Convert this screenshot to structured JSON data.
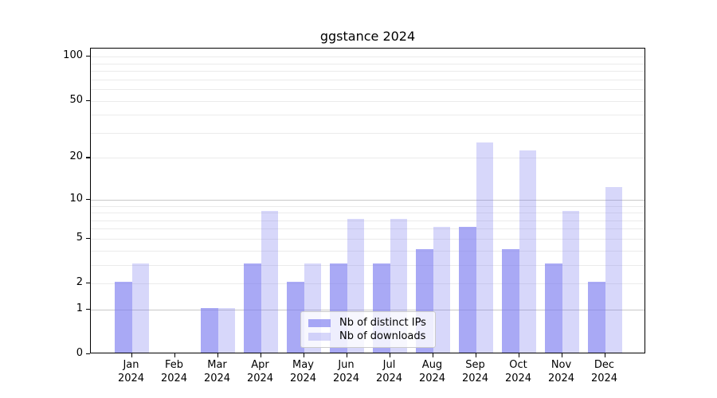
{
  "chart_data": {
    "type": "bar",
    "title": "ggstance 2024",
    "categories": [
      "Jan 2024",
      "Feb 2024",
      "Mar 2024",
      "Apr 2024",
      "May 2024",
      "Jun 2024",
      "Jul 2024",
      "Aug 2024",
      "Sep 2024",
      "Oct 2024",
      "Nov 2024",
      "Dec 2024"
    ],
    "series": [
      {
        "name": "Nb of distinct IPs",
        "color": "#a9aaf9",
        "values": [
          2,
          0,
          1,
          3,
          2,
          3,
          3,
          4,
          6,
          4,
          3,
          2
        ]
      },
      {
        "name": "Nb of downloads",
        "color": "#d8d9fb",
        "values": [
          3,
          0,
          1,
          8,
          3,
          7,
          7,
          6,
          25,
          22,
          8,
          12
        ]
      }
    ],
    "xlabel": "",
    "ylabel": "",
    "y_scale": "log1p",
    "ylim": [
      0,
      115
    ],
    "y_ticks": [
      0,
      1,
      2,
      5,
      10,
      20,
      50,
      100
    ],
    "grid_minor_values": [
      2,
      3,
      4,
      5,
      6,
      7,
      8,
      9,
      20,
      30,
      40,
      50,
      60,
      70,
      80,
      90,
      100
    ],
    "grid_major_values": [
      1,
      10
    ],
    "legend_position": "lower center inside plot",
    "grid": "on"
  },
  "colors": {
    "bar_fill_base": "#7b7bf0",
    "bar_dark_alpha": 0.65,
    "bar_light_alpha": 0.3,
    "grid_minor": "#ebebeb",
    "grid_major": "#c8c8c8",
    "axis": "#000000",
    "legend_border": "#cbcbcb"
  }
}
